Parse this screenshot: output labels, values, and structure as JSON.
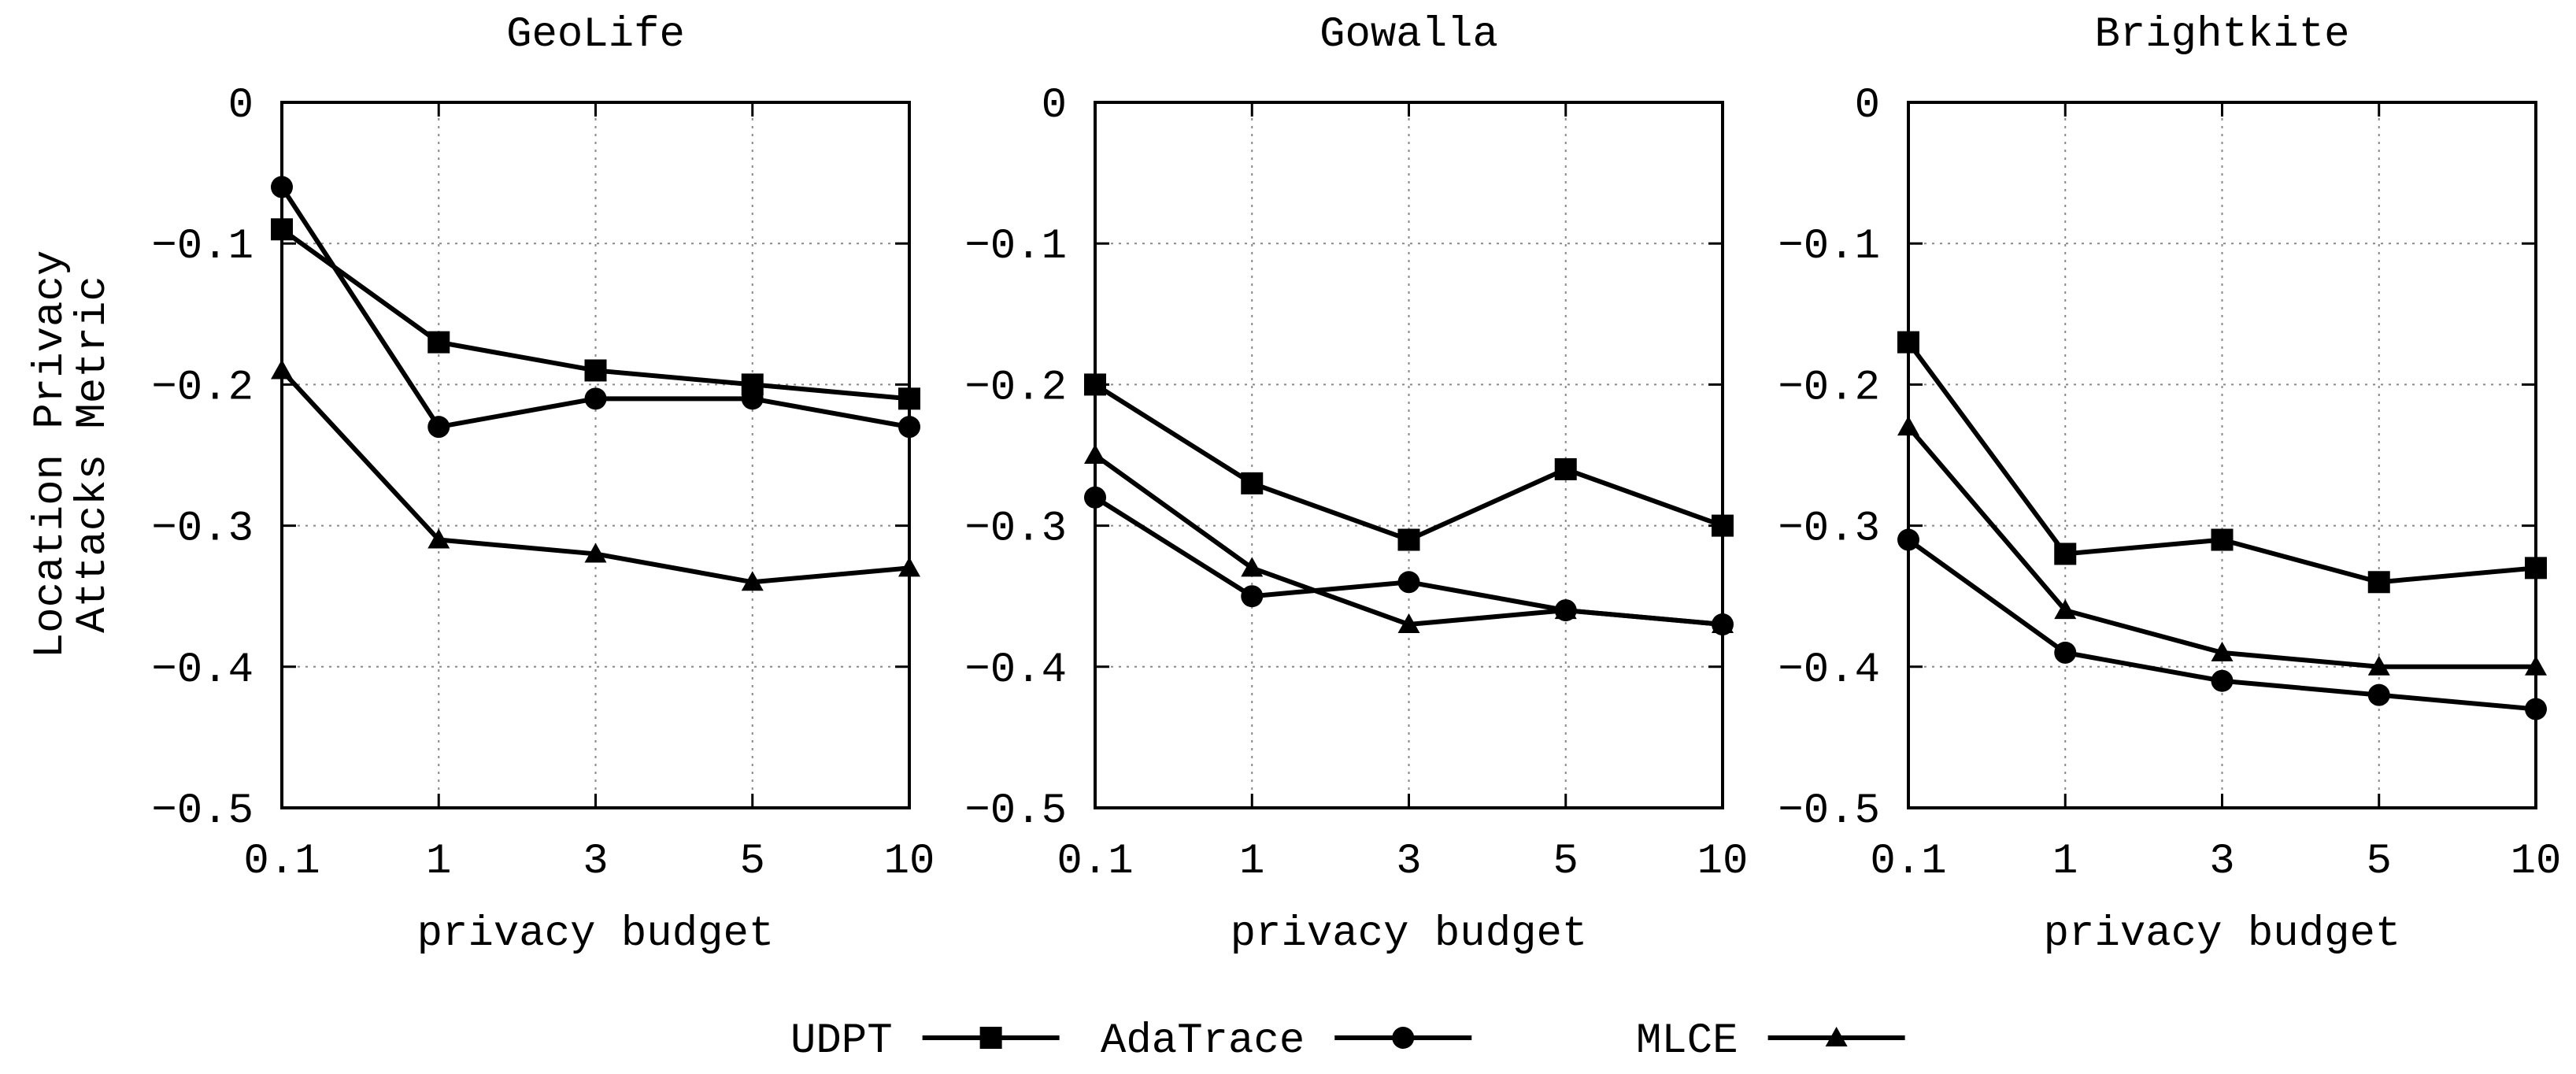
{
  "y_axis_label": [
    "Location Privacy",
    "Attacks Metric"
  ],
  "chart_data": [
    {
      "type": "line",
      "title": "GeoLife",
      "xlabel": "privacy budget",
      "ylabel": "Location Privacy Attacks Metric",
      "categories": [
        "0.1",
        "1",
        "3",
        "5",
        "10"
      ],
      "ylim": [
        -0.5,
        0
      ],
      "yticks": [
        0,
        -0.1,
        -0.2,
        -0.3,
        -0.4,
        -0.5
      ],
      "ytick_labels": [
        "0",
        "−0.1",
        "−0.2",
        "−0.3",
        "−0.4",
        "−0.5"
      ],
      "grid": true,
      "series": [
        {
          "name": "UDPT",
          "marker": "square",
          "values": [
            -0.09,
            -0.17,
            -0.19,
            -0.2,
            -0.21
          ]
        },
        {
          "name": "AdaTrace",
          "marker": "circle",
          "values": [
            -0.06,
            -0.23,
            -0.21,
            -0.21,
            -0.23
          ]
        },
        {
          "name": "MLCE",
          "marker": "triangle",
          "values": [
            -0.19,
            -0.31,
            -0.32,
            -0.34,
            -0.33
          ]
        }
      ]
    },
    {
      "type": "line",
      "title": "Gowalla",
      "xlabel": "privacy budget",
      "ylabel": "",
      "categories": [
        "0.1",
        "1",
        "3",
        "5",
        "10"
      ],
      "ylim": [
        -0.5,
        0
      ],
      "yticks": [
        0,
        -0.1,
        -0.2,
        -0.3,
        -0.4,
        -0.5
      ],
      "ytick_labels": [
        "0",
        "−0.1",
        "−0.2",
        "−0.3",
        "−0.4",
        "−0.5"
      ],
      "grid": true,
      "series": [
        {
          "name": "UDPT",
          "marker": "square",
          "values": [
            -0.2,
            -0.27,
            -0.31,
            -0.26,
            -0.3
          ]
        },
        {
          "name": "AdaTrace",
          "marker": "circle",
          "values": [
            -0.28,
            -0.35,
            -0.34,
            -0.36,
            -0.37
          ]
        },
        {
          "name": "MLCE",
          "marker": "triangle",
          "values": [
            -0.25,
            -0.33,
            -0.37,
            -0.36,
            -0.37
          ]
        }
      ]
    },
    {
      "type": "line",
      "title": "Brightkite",
      "xlabel": "privacy budget",
      "ylabel": "",
      "categories": [
        "0.1",
        "1",
        "3",
        "5",
        "10"
      ],
      "ylim": [
        -0.5,
        0
      ],
      "yticks": [
        0,
        -0.1,
        -0.2,
        -0.3,
        -0.4,
        -0.5
      ],
      "ytick_labels": [
        "0",
        "−0.1",
        "−0.2",
        "−0.3",
        "−0.4",
        "−0.5"
      ],
      "grid": true,
      "series": [
        {
          "name": "UDPT",
          "marker": "square",
          "values": [
            -0.17,
            -0.32,
            -0.31,
            -0.34,
            -0.33
          ]
        },
        {
          "name": "AdaTrace",
          "marker": "circle",
          "values": [
            -0.31,
            -0.39,
            -0.41,
            -0.42,
            -0.43
          ]
        },
        {
          "name": "MLCE",
          "marker": "triangle",
          "values": [
            -0.23,
            -0.36,
            -0.39,
            -0.4,
            -0.4
          ]
        }
      ]
    }
  ],
  "legend": {
    "placement": "bottom-center",
    "items": [
      {
        "label": "UDPT",
        "marker": "square"
      },
      {
        "label": "AdaTrace",
        "marker": "circle"
      },
      {
        "label": "MLCE",
        "marker": "triangle"
      }
    ]
  }
}
